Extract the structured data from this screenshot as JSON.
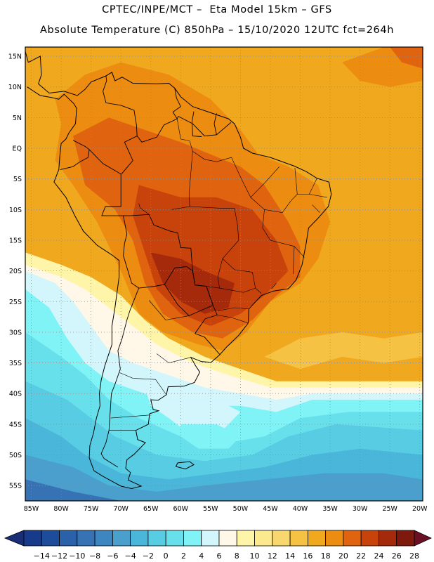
{
  "header": {
    "line1": "CPTEC/INPE/MCT –  Eta Model 15km – GFS",
    "line2": "Absolute Temperature (C) 850hPa – 15/10/2020 12UTC fct=264h"
  },
  "map": {
    "lat_labels": [
      "15N",
      "10N",
      "5N",
      "EQ",
      "5S",
      "10S",
      "15S",
      "20S",
      "25S",
      "30S",
      "35S",
      "40S",
      "45S",
      "50S",
      "55S"
    ],
    "lat_values": [
      15,
      10,
      5,
      0,
      -5,
      -10,
      -15,
      -20,
      -25,
      -30,
      -35,
      -40,
      -45,
      -50,
      -55
    ],
    "lon_labels": [
      "85W",
      "80W",
      "75W",
      "70W",
      "65W",
      "60W",
      "55W",
      "50W",
      "45W",
      "40W",
      "35W",
      "30W",
      "25W",
      "20W"
    ],
    "lon_values": [
      -85,
      -80,
      -75,
      -70,
      -65,
      -60,
      -55,
      -50,
      -45,
      -40,
      -35,
      -30,
      -25,
      -20
    ],
    "lat_range": [
      -57.5,
      16.5
    ],
    "lon_range": [
      -86,
      -19.5
    ]
  },
  "colorbar": {
    "labels": [
      "-14",
      "-12",
      "-10",
      "-8",
      "-6",
      "-4",
      "-2",
      "0",
      "2",
      "4",
      "6",
      "8",
      "10",
      "12",
      "14",
      "16",
      "18",
      "20",
      "22",
      "24",
      "26",
      "28"
    ],
    "colors": [
      "#173a8a",
      "#1d4d9a",
      "#2a61a9",
      "#3772b5",
      "#3d86c0",
      "#4a9fcd",
      "#4ab6d9",
      "#58cce3",
      "#67e0ec",
      "#7ff3f6",
      "#d2f6fb",
      "#fff8e8",
      "#fff5a8",
      "#fde98d",
      "#f9d76f",
      "#f5c243",
      "#f0a81e",
      "#ec8c10",
      "#e0640f",
      "#c8430c",
      "#a52a0c",
      "#7e1a0d"
    ],
    "low_arrow_color": "#1a2e78",
    "high_arrow_color": "#6b1024"
  }
}
